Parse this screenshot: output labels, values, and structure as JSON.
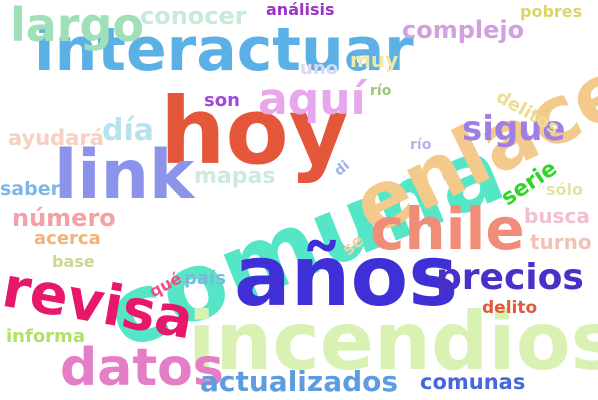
{
  "words": [
    {
      "text": "hoy",
      "color": "#e4573a"
    },
    {
      "text": "comuna",
      "color": "#55e6c8"
    },
    {
      "text": "enlace",
      "color": "#f4c98c"
    },
    {
      "text": "años",
      "color": "#3f2fd6"
    },
    {
      "text": "incendios",
      "color": "#d9f2b4"
    },
    {
      "text": "link",
      "color": "#8c93ea"
    },
    {
      "text": "interactuar",
      "color": "#5bb0e6"
    },
    {
      "text": "chile",
      "color": "#f08d78"
    },
    {
      "text": "revisa",
      "color": "#e7176c"
    },
    {
      "text": "datos",
      "color": "#e47ec6"
    },
    {
      "text": "largo",
      "color": "#9fe0b8"
    },
    {
      "text": "aquí",
      "color": "#e8a6ec"
    },
    {
      "text": "precios",
      "color": "#4b30c8"
    },
    {
      "text": "sigue",
      "color": "#9e7fe6"
    },
    {
      "text": "actualizados",
      "color": "#5e9ce0"
    },
    {
      "text": "día",
      "color": "#b8e2ee"
    },
    {
      "text": "conocer",
      "color": "#c7ebd6"
    },
    {
      "text": "complejo",
      "color": "#d2a0e0"
    },
    {
      "text": "mapas",
      "color": "#cceadf"
    },
    {
      "text": "comunas",
      "color": "#4866d8"
    },
    {
      "text": "número",
      "color": "#f5a0a6"
    },
    {
      "text": "serie",
      "color": "#2fd626"
    },
    {
      "text": "busca",
      "color": "#f2bfcf"
    },
    {
      "text": "delitos",
      "color": "#eedc96"
    },
    {
      "text": "turno",
      "color": "#f3c2b6"
    },
    {
      "text": "ayudará",
      "color": "#f8cfc0"
    },
    {
      "text": "informa",
      "color": "#b1e16a"
    },
    {
      "text": "país",
      "color": "#7ab8d8"
    },
    {
      "text": "acerca",
      "color": "#f2b27a"
    },
    {
      "text": "base",
      "color": "#ccd690"
    },
    {
      "text": "saber",
      "color": "#7fb6ea"
    },
    {
      "text": "son",
      "color": "#a04ad6"
    },
    {
      "text": "uno",
      "color": "#dcd8f2"
    },
    {
      "text": "muy",
      "color": "#f1e7a6"
    },
    {
      "text": "análisis",
      "color": "#9b35c4"
    },
    {
      "text": "pobres",
      "color": "#dcd36a"
    },
    {
      "text": "delito",
      "color": "#e4573a"
    },
    {
      "text": "qué",
      "color": "#ee4f86"
    },
    {
      "text": "sólo",
      "color": "#e3e3a8"
    },
    {
      "text": "se",
      "color": "#f6d0a8"
    },
    {
      "text": "di",
      "color": "#9fb0e6"
    },
    {
      "text": "río",
      "color": "#9fc47a"
    },
    {
      "text": "río",
      "color": "#b7b2e6"
    }
  ]
}
